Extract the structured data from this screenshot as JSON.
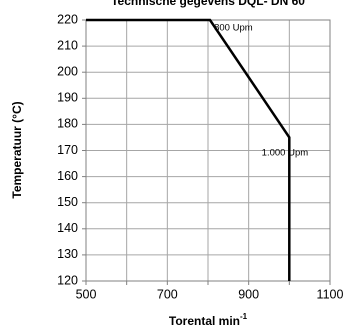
{
  "chart_data": {
    "type": "line",
    "title": "Technische gegevens DQL- DN 60",
    "xlabel": "Torental min",
    "xlabel_sup": "-1",
    "ylabel": "Temperatuur (°C)",
    "xlim": [
      500,
      1100
    ],
    "ylim": [
      120,
      220
    ],
    "x_ticks": [
      500,
      700,
      900,
      1100
    ],
    "y_ticks": [
      120,
      130,
      140,
      150,
      160,
      170,
      180,
      190,
      200,
      210,
      220
    ],
    "x_minor_grid": [
      600,
      800,
      1000
    ],
    "grid": true,
    "series": [
      {
        "color": "#000000",
        "points": [
          [
            500,
            220
          ],
          [
            805,
            220
          ],
          [
            1000,
            175
          ],
          [
            1000,
            120
          ]
        ]
      }
    ],
    "annotations": [
      {
        "text": "800 Upm",
        "x": 815,
        "y": 217
      },
      {
        "text": "1.000 Upm",
        "x": 932,
        "y": 169
      }
    ]
  }
}
